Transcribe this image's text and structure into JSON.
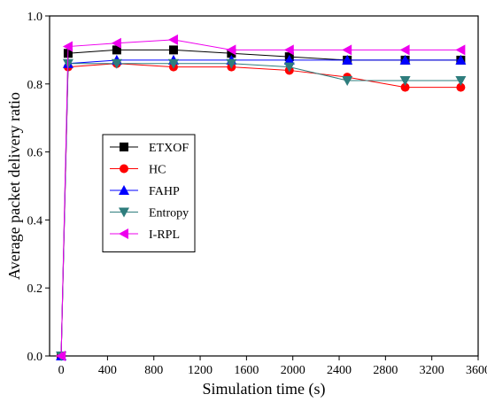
{
  "chart_data": {
    "type": "line",
    "xlabel": "Simulation time (s)",
    "ylabel": "Average packet delivery ratio",
    "xlim": [
      -100,
      3600
    ],
    "ylim": [
      0.0,
      1.0
    ],
    "x_ticks": [
      0,
      400,
      800,
      1200,
      1600,
      2000,
      2400,
      2800,
      3200,
      3600
    ],
    "x_tick_labels": [
      "0",
      "400",
      "800",
      "1200",
      "1600",
      "2000",
      "2400",
      "2800",
      "3200",
      "3600"
    ],
    "y_ticks": [
      0.0,
      0.2,
      0.4,
      0.6,
      0.8,
      1.0
    ],
    "y_tick_labels": [
      "0.0",
      "0.2",
      "0.4",
      "0.6",
      "0.8",
      "1.0"
    ],
    "grid": false,
    "legend_position": "center-left",
    "series": [
      {
        "name": "ETXOF",
        "color": "#000000",
        "marker": "square",
        "x": [
          0,
          60,
          480,
          970,
          1470,
          1970,
          2470,
          2970,
          3450
        ],
        "y": [
          0.0,
          0.89,
          0.9,
          0.9,
          0.89,
          0.88,
          0.87,
          0.87,
          0.87
        ]
      },
      {
        "name": "HC",
        "color": "#ff0000",
        "marker": "circle",
        "x": [
          0,
          60,
          480,
          970,
          1470,
          1970,
          2470,
          2970,
          3450
        ],
        "y": [
          0.0,
          0.85,
          0.86,
          0.85,
          0.85,
          0.84,
          0.82,
          0.79,
          0.79
        ]
      },
      {
        "name": "FAHP",
        "color": "#0000ff",
        "marker": "triangle-up",
        "x": [
          0,
          60,
          480,
          970,
          1470,
          1970,
          2470,
          2970,
          3450
        ],
        "y": [
          0.0,
          0.86,
          0.87,
          0.87,
          0.87,
          0.87,
          0.87,
          0.87,
          0.87
        ]
      },
      {
        "name": "Entropy",
        "color": "#2e7d7d",
        "marker": "triangle-down",
        "x": [
          0,
          60,
          480,
          970,
          1470,
          1970,
          2470,
          2970,
          3450
        ],
        "y": [
          0.0,
          0.86,
          0.86,
          0.86,
          0.86,
          0.85,
          0.81,
          0.81,
          0.81
        ]
      },
      {
        "name": "I-RPL",
        "color": "#ee00ee",
        "marker": "triangle-left",
        "x": [
          0,
          60,
          480,
          970,
          1470,
          1970,
          2470,
          2970,
          3450
        ],
        "y": [
          0.0,
          0.91,
          0.92,
          0.93,
          0.9,
          0.9,
          0.9,
          0.9,
          0.9
        ]
      }
    ]
  }
}
